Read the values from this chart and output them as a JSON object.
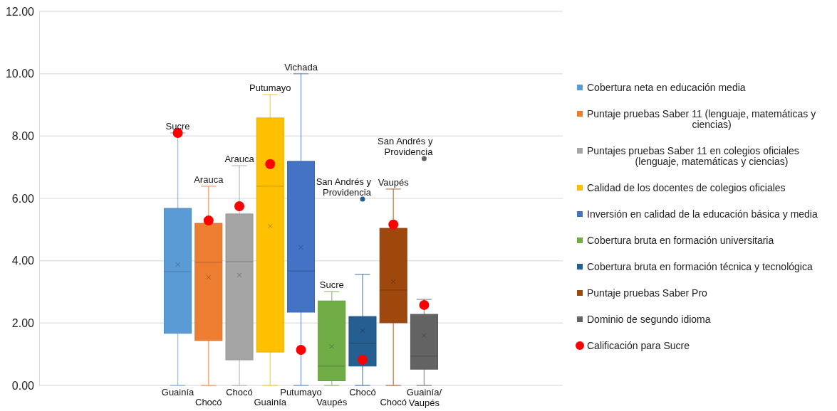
{
  "chart_data": {
    "type": "box",
    "categories": [
      null,
      null,
      null,
      null,
      null,
      null,
      null,
      null,
      null,
      null,
      null,
      null,
      null,
      null,
      null,
      null,
      null
    ],
    "series": [
      {
        "name": "Cobertura neta en educación media",
        "color": "#5b9bd5",
        "boxes": [
          null,
          null,
          null,
          null,
          {
            "low": 0,
            "q1": 1.67,
            "median": 3.65,
            "q3": 5.68,
            "high": 8.1,
            "mean": 3.88
          },
          null,
          null,
          null,
          null,
          null,
          null,
          null,
          null,
          null,
          null,
          null,
          null
        ]
      },
      {
        "name": "Puntaje pruebas Saber 11 (lenguaje, matemáticas y ciencias)",
        "color": "#ed7d31",
        "boxes": [
          null,
          null,
          null,
          null,
          null,
          {
            "low": 0,
            "q1": 1.44,
            "median": 3.95,
            "q3": 5.2,
            "high": 6.39,
            "mean": 3.47
          },
          null,
          null,
          null,
          null,
          null,
          null,
          null,
          null,
          null,
          null,
          null
        ]
      },
      {
        "name": "Puntajes pruebas Saber 11 en colegios oficiales (lenguaje, matemáticas y ciencias)",
        "color": "#a5a5a5",
        "boxes": [
          null,
          null,
          null,
          null,
          null,
          null,
          {
            "low": 0,
            "q1": 0.82,
            "median": 3.97,
            "q3": 5.5,
            "high": 7.05,
            "mean": 3.54
          },
          null,
          null,
          null,
          null,
          null,
          null,
          null,
          null,
          null,
          null
        ]
      },
      {
        "name": "Calidad de los docentes de colegios oficiales",
        "color": "#ffc000",
        "boxes": [
          null,
          null,
          null,
          null,
          null,
          null,
          null,
          {
            "low": 0,
            "q1": 1.07,
            "median": 6.39,
            "q3": 8.58,
            "high": 9.33,
            "mean": 5.11
          },
          null,
          null,
          null,
          null,
          null,
          null,
          null,
          null,
          null
        ]
      },
      {
        "name": "Inversión en calidad de la educación básica y media",
        "color": "#4472c4",
        "boxes": [
          null,
          null,
          null,
          null,
          null,
          null,
          null,
          null,
          {
            "low": 0,
            "q1": 2.35,
            "median": 3.67,
            "q3": 7.19,
            "high": 10,
            "mean": 4.43
          },
          null,
          null,
          null,
          null,
          null,
          null,
          null,
          null
        ]
      },
      {
        "name": "Cobertura bruta en formación universitaria",
        "color": "#70ad47",
        "boxes": [
          null,
          null,
          null,
          null,
          null,
          null,
          null,
          null,
          null,
          {
            "low": 0,
            "q1": 0.15,
            "median": 0.62,
            "q3": 2.71,
            "high": 3.01,
            "mean": 1.25
          },
          null,
          null,
          null,
          null,
          null,
          null,
          null
        ]
      },
      {
        "name": "Cobertura bruta en formación técnica y tecnológica",
        "color": "#255e91",
        "boxes": [
          null,
          null,
          null,
          null,
          null,
          null,
          null,
          null,
          null,
          null,
          {
            "low": 0,
            "q1": 0.62,
            "median": 1.35,
            "q3": 2.21,
            "high": 3.56,
            "mean": 1.76,
            "outliers": [
              5.98
            ]
          },
          null,
          null,
          null,
          null,
          null,
          null
        ]
      },
      {
        "name": "Puntaje pruebas Saber Pro",
        "color": "#9e480e",
        "boxes": [
          null,
          null,
          null,
          null,
          null,
          null,
          null,
          null,
          null,
          null,
          null,
          {
            "low": 0,
            "q1": 2.01,
            "median": 3.06,
            "q3": 5.04,
            "high": 6.3,
            "mean": 3.33
          },
          null,
          null,
          null,
          null,
          null
        ]
      },
      {
        "name": "Dominio de segundo idioma",
        "color": "#636363",
        "boxes": [
          null,
          null,
          null,
          null,
          null,
          null,
          null,
          null,
          null,
          null,
          null,
          null,
          {
            "low": 0,
            "q1": 0.52,
            "median": 0.94,
            "q3": 2.28,
            "high": 2.76,
            "mean": 1.6,
            "outliers": [
              7.28
            ]
          },
          null,
          null,
          null,
          null
        ]
      },
      {
        "type": "scatter",
        "name": "Calificación para Sucre",
        "color": "#ff0000",
        "values": [
          null,
          null,
          null,
          null,
          8.1,
          5.29,
          5.75,
          7.1,
          1.14,
          null,
          0.82,
          5.16,
          2.58,
          null,
          null,
          null,
          null
        ]
      }
    ],
    "ylim": [
      0,
      12
    ],
    "yticks": [
      {
        "value": 0,
        "label": "0.00"
      },
      {
        "value": 2,
        "label": "2.00"
      },
      {
        "value": 4,
        "label": "4.00"
      },
      {
        "value": 6,
        "label": "6.00"
      },
      {
        "value": 8,
        "label": "8.00"
      },
      {
        "value": 10,
        "label": "10.00"
      },
      {
        "value": 12,
        "label": "12.00"
      }
    ],
    "grid": "y",
    "legend": "right",
    "annotations": [
      "Sucre",
      "Guainía",
      "Arauca",
      "Chocó",
      "Arauca",
      "Chocó",
      "Putumayo",
      "Guainía",
      "Vichada",
      "Putumayo",
      "Sucre",
      "Vaupés",
      "San Andrés y\nProvidencia",
      "Chocó",
      "Vaupés",
      "Chocó",
      "San Andrés y\nProvidencia",
      "Guainía/\nVaupés"
    ]
  }
}
